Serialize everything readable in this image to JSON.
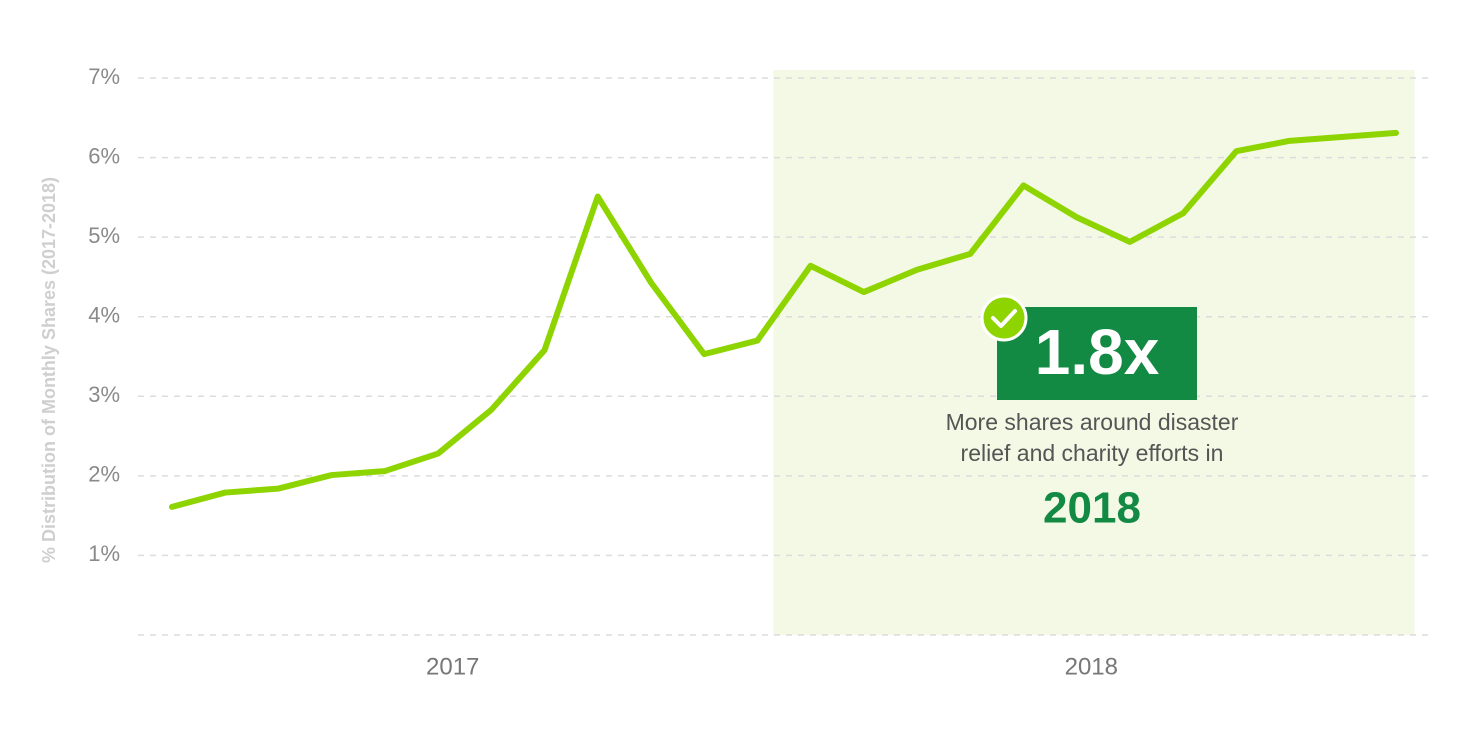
{
  "chart_data": {
    "type": "line",
    "y_label": "% Distribution of Monthly Shares (2017-2018)",
    "categories": [
      "2017",
      null,
      null,
      null,
      null,
      null,
      null,
      null,
      null,
      null,
      null,
      null,
      "2018",
      null,
      null,
      null,
      null,
      null,
      null,
      null,
      null,
      null,
      null,
      null
    ],
    "series": [
      {
        "name": "Monthly shares",
        "color": "#8ed400",
        "values": [
          1.61,
          1.79,
          1.84,
          2.01,
          2.06,
          2.28,
          2.83,
          3.58,
          5.51,
          4.43,
          3.53,
          3.7,
          4.64,
          4.31,
          4.59,
          4.79,
          5.65,
          5.25,
          4.94,
          5.3,
          6.08,
          6.21,
          6.26,
          6.31
        ]
      }
    ],
    "ylim": [
      0,
      7
    ],
    "yticks": [
      {
        "value": 1,
        "label": "1%"
      },
      {
        "value": 2,
        "label": "2%"
      },
      {
        "value": 3,
        "label": "3%"
      },
      {
        "value": 4,
        "label": "4%"
      },
      {
        "value": 5,
        "label": "5%"
      },
      {
        "value": 6,
        "label": "6%"
      },
      {
        "value": 7,
        "label": "7%"
      }
    ],
    "grid": true,
    "highlight_group": 1,
    "highlight_color": "#f4f9e6",
    "annotation": {
      "headline": "1.8x",
      "text_lines": [
        "More shares around disaster",
        "relief and charity efforts in"
      ],
      "emphasis": "2018",
      "color": "#128a43"
    }
  }
}
